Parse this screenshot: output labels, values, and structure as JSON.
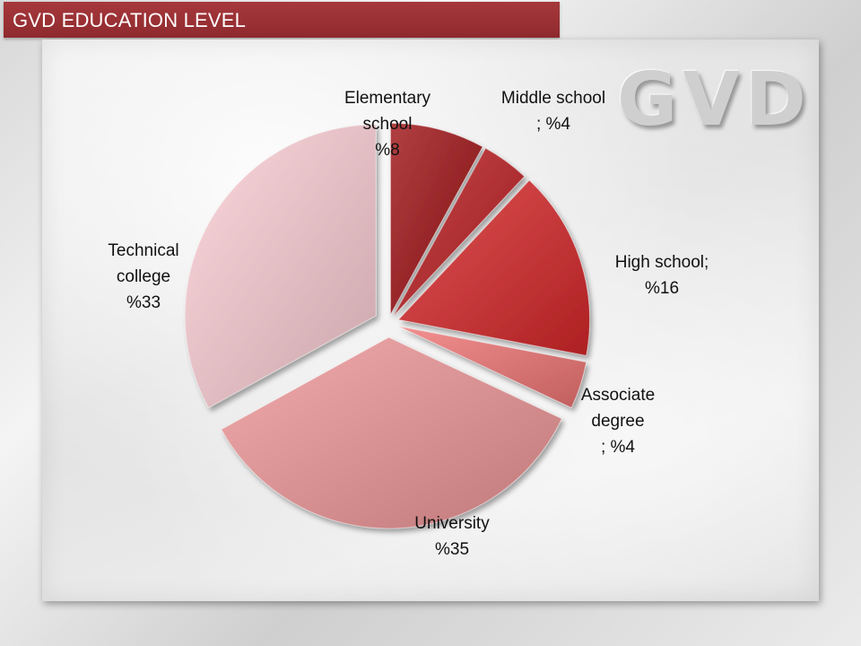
{
  "header": {
    "title": "GVD EDUCATION LEVEL"
  },
  "logo": {
    "text": "GVD"
  },
  "colors": {
    "title_bar": "#9b3034"
  },
  "chart_data": {
    "type": "pie",
    "title": "",
    "slices": [
      {
        "name": "Elementary school",
        "value": 8,
        "label_lines": [
          "Elementary",
          "school",
          "%8"
        ],
        "color": "#9b2a2c"
      },
      {
        "name": "Middle school",
        "value": 4,
        "label_lines": [
          "Middle school",
          "; %4"
        ],
        "color": "#b33437"
      },
      {
        "name": "High school",
        "value": 16,
        "label_lines": [
          "High school;",
          "%16"
        ],
        "color": "#c93c3e"
      },
      {
        "name": "Associate degree",
        "value": 4,
        "label_lines": [
          "Associate",
          "degree",
          "; %4"
        ],
        "color": "#dd7a7a"
      },
      {
        "name": "University",
        "value": 35,
        "label_lines": [
          "University",
          "%35"
        ],
        "color": "#dc9596"
      },
      {
        "name": "Technical college",
        "value": 33,
        "label_lines": [
          "Technical",
          "college",
          "%33"
        ],
        "color": "#e6c2c7"
      }
    ]
  }
}
